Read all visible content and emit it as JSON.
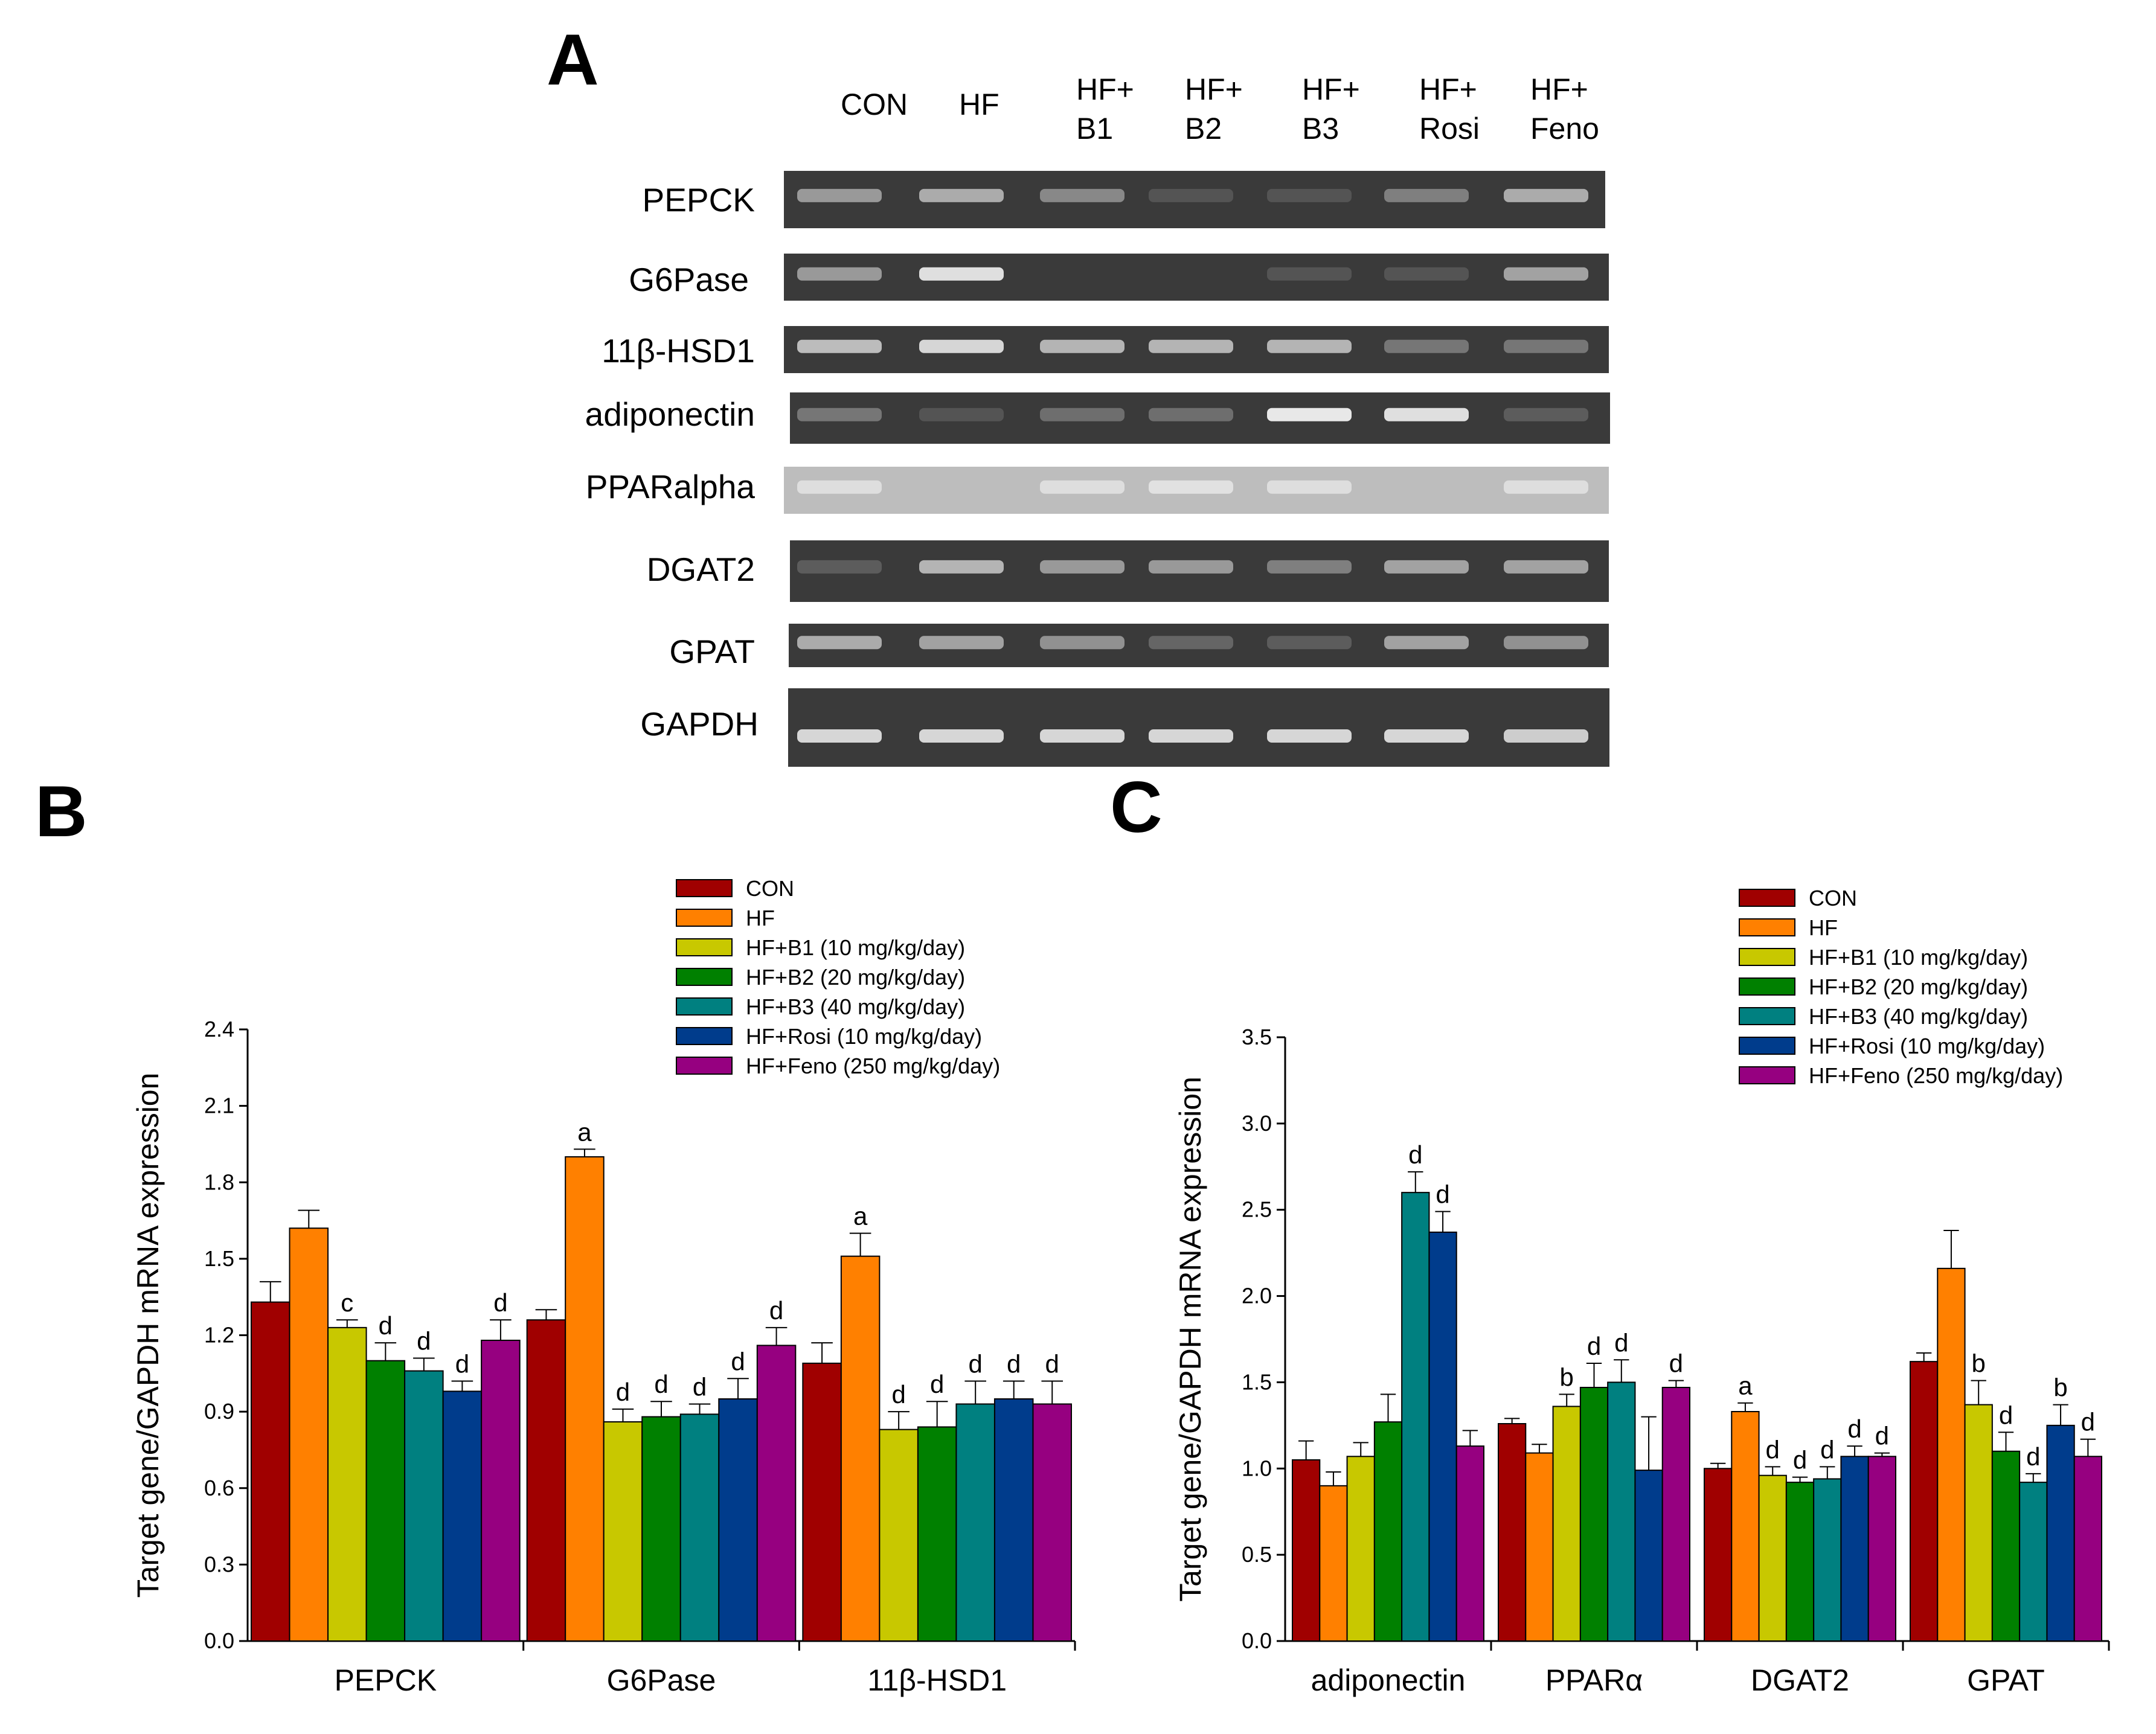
{
  "colors": {
    "series": [
      "#a00000",
      "#ff8000",
      "#c8c800",
      "#008000",
      "#008080",
      "#003c8c",
      "#960080"
    ],
    "axis": "#000000",
    "gel_bg": "#3a3a3a",
    "gel_bg_light": "#bdbdbd",
    "band": "#e8e8e8"
  },
  "panel_labels": {
    "a": "A",
    "b": "B",
    "c": "C"
  },
  "gel": {
    "lane_labels": [
      [
        "CON"
      ],
      [
        "HF"
      ],
      [
        "HF+",
        "B1"
      ],
      [
        "HF+",
        "B2"
      ],
      [
        "HF+",
        "B3"
      ],
      [
        "HF+",
        "Rosi"
      ],
      [
        "HF+",
        "Feno"
      ]
    ],
    "genes": [
      {
        "name": "PEPCK",
        "intensity": [
          0.55,
          0.65,
          0.45,
          0.15,
          0.15,
          0.4,
          0.65
        ]
      },
      {
        "name": "G6Pase",
        "intensity": [
          0.55,
          0.95,
          0.0,
          0.0,
          0.15,
          0.15,
          0.6
        ]
      },
      {
        "name": "11β-HSD1",
        "intensity": [
          0.75,
          0.9,
          0.7,
          0.7,
          0.7,
          0.35,
          0.35
        ]
      },
      {
        "name": "adiponectin",
        "intensity": [
          0.35,
          0.15,
          0.3,
          0.3,
          1.0,
          0.95,
          0.2
        ]
      },
      {
        "name": "PPARalpha",
        "intensity": [
          0.6,
          0.0,
          0.6,
          0.65,
          0.6,
          0.0,
          0.6
        ]
      },
      {
        "name": "DGAT2",
        "intensity": [
          0.2,
          0.7,
          0.55,
          0.55,
          0.4,
          0.6,
          0.6
        ]
      },
      {
        "name": "GPAT",
        "intensity": [
          0.65,
          0.6,
          0.5,
          0.25,
          0.2,
          0.6,
          0.5
        ]
      },
      {
        "name": "GAPDH",
        "intensity": [
          0.9,
          0.9,
          0.9,
          0.9,
          0.9,
          0.9,
          0.85
        ]
      }
    ]
  },
  "chart_data": [
    {
      "type": "bar",
      "panel": "B",
      "ylabel": "Target gene/GAPDH mRNA expression",
      "xlabel": "",
      "ylim": [
        0,
        2.4
      ],
      "yticks": [
        "0.0",
        "0.3",
        "0.6",
        "0.9",
        "1.2",
        "1.5",
        "1.8",
        "2.1",
        "2.4"
      ],
      "categories": [
        "PEPCK",
        "G6Pase",
        "11β-HSD1"
      ],
      "legend_position": "top-right",
      "series": [
        {
          "name": "CON",
          "values": [
            1.33,
            1.26,
            1.09
          ],
          "errors": [
            0.08,
            0.04,
            0.08
          ],
          "labels": [
            "",
            "",
            ""
          ]
        },
        {
          "name": "HF",
          "values": [
            1.62,
            1.9,
            1.51
          ],
          "errors": [
            0.07,
            0.03,
            0.09
          ],
          "labels": [
            "",
            "a",
            "a"
          ]
        },
        {
          "name": "HF+B1 (10 mg/kg/day)",
          "values": [
            1.23,
            0.86,
            0.83
          ],
          "errors": [
            0.03,
            0.05,
            0.07
          ],
          "labels": [
            "c",
            "d",
            "d"
          ]
        },
        {
          "name": "HF+B2 (20 mg/kg/day)",
          "values": [
            1.1,
            0.88,
            0.84
          ],
          "errors": [
            0.07,
            0.06,
            0.1
          ],
          "labels": [
            "d",
            "d",
            "d"
          ]
        },
        {
          "name": "HF+B3 (40 mg/kg/day)",
          "values": [
            1.06,
            0.89,
            0.93
          ],
          "errors": [
            0.05,
            0.04,
            0.09
          ],
          "labels": [
            "d",
            "d",
            "d"
          ]
        },
        {
          "name": "HF+Rosi (10 mg/kg/day)",
          "values": [
            0.98,
            0.95,
            0.95
          ],
          "errors": [
            0.04,
            0.08,
            0.07
          ],
          "labels": [
            "d",
            "d",
            "d"
          ]
        },
        {
          "name": "HF+Feno (250 mg/kg/day)",
          "values": [
            1.18,
            1.16,
            0.93
          ],
          "errors": [
            0.08,
            0.07,
            0.09
          ],
          "labels": [
            "d",
            "d",
            "d"
          ]
        }
      ]
    },
    {
      "type": "bar",
      "panel": "C",
      "ylabel": "Target gene/GAPDH mRNA expression",
      "xlabel": "",
      "ylim": [
        0,
        3.5
      ],
      "yticks": [
        "0.0",
        "0.5",
        "1.0",
        "1.5",
        "2.0",
        "2.5",
        "3.0",
        "3.5"
      ],
      "categories": [
        "adiponectin",
        "PPARα",
        "DGAT2",
        "GPAT"
      ],
      "legend_position": "top-right",
      "series": [
        {
          "name": "CON",
          "values": [
            1.05,
            1.26,
            1.0,
            1.62
          ],
          "errors": [
            0.11,
            0.03,
            0.03,
            0.05
          ],
          "labels": [
            "",
            "",
            "",
            ""
          ]
        },
        {
          "name": "HF",
          "values": [
            0.9,
            1.09,
            1.33,
            2.16
          ],
          "errors": [
            0.08,
            0.05,
            0.05,
            0.22
          ],
          "labels": [
            "",
            "",
            "a",
            ""
          ]
        },
        {
          "name": "HF+B1 (10 mg/kg/day)",
          "values": [
            1.07,
            1.36,
            0.96,
            1.37
          ],
          "errors": [
            0.08,
            0.07,
            0.05,
            0.14
          ],
          "labels": [
            "",
            "b",
            "d",
            "b"
          ]
        },
        {
          "name": "HF+B2 (20 mg/kg/day)",
          "values": [
            1.27,
            1.47,
            0.92,
            1.1
          ],
          "errors": [
            0.16,
            0.14,
            0.03,
            0.11
          ],
          "labels": [
            "",
            "d",
            "d",
            "d"
          ]
        },
        {
          "name": "HF+B3 (40 mg/kg/day)",
          "values": [
            2.6,
            1.5,
            0.94,
            0.92
          ],
          "errors": [
            0.12,
            0.13,
            0.07,
            0.05
          ],
          "labels": [
            "d",
            "d",
            "d",
            "d"
          ]
        },
        {
          "name": "HF+Rosi (10 mg/kg/day)",
          "values": [
            2.37,
            0.99,
            1.07,
            1.25
          ],
          "errors": [
            0.12,
            0.31,
            0.06,
            0.12
          ],
          "labels": [
            "d",
            "",
            "d",
            "b"
          ]
        },
        {
          "name": "HF+Feno (250 mg/kg/day)",
          "values": [
            1.13,
            1.47,
            1.07,
            1.07
          ],
          "errors": [
            0.09,
            0.04,
            0.02,
            0.1
          ],
          "labels": [
            "",
            "d",
            "d",
            "d"
          ]
        }
      ]
    }
  ]
}
